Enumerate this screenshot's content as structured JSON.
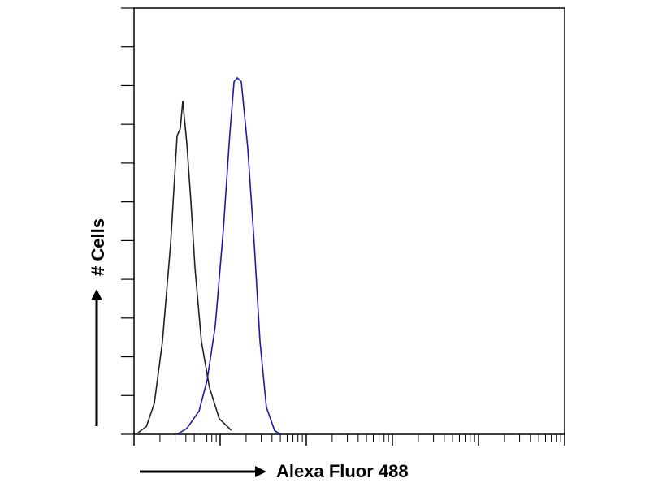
{
  "chart_data": {
    "type": "line",
    "xlabel": "Alexa Fluor 488",
    "ylabel": "# Cells",
    "xscale": "log",
    "xlim": [
      1,
      100000
    ],
    "xticks": [
      1,
      10,
      100,
      1000,
      10000,
      100000
    ],
    "minor_ticks": true,
    "ylim": [
      0,
      110
    ],
    "yticks": [
      0,
      10,
      20,
      30,
      40,
      50,
      60,
      70,
      80,
      90,
      100,
      110
    ],
    "series": [
      {
        "color": "#222222",
        "x": [
          1.11,
          1.39,
          1.72,
          2.14,
          2.66,
          3.16,
          3.45,
          3.68,
          4.1,
          4.57,
          5.1,
          6.06,
          7.53,
          9.78,
          13.5
        ],
        "values": [
          0.4,
          2,
          8,
          24,
          49,
          77,
          79,
          86,
          75,
          60,
          43,
          24,
          12,
          4,
          1
        ]
      },
      {
        "color": "#1a1aa6",
        "x": [
          3.16,
          4.1,
          5.68,
          7.06,
          8.77,
          10.9,
          12.9,
          14.5,
          15.8,
          17.6,
          20.9,
          24.9,
          29.0,
          34.4,
          42.8,
          49.9
        ],
        "values": [
          0,
          1.5,
          6,
          14,
          28,
          53,
          77,
          91,
          92,
          91,
          74,
          49,
          24,
          7,
          1,
          0
        ]
      }
    ]
  }
}
